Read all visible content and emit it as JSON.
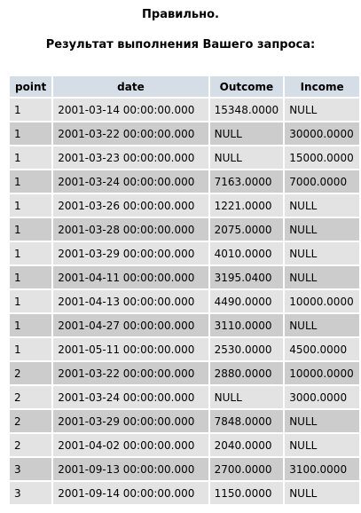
{
  "status_text": "Правильно.",
  "result_title": "Результат выполнения Вашего запроса:",
  "table": {
    "headers": [
      "point",
      "date",
      "Outcome",
      "Income"
    ],
    "rows": [
      [
        "1",
        "2001-03-14 00:00:00.000",
        "15348.0000",
        "NULL"
      ],
      [
        "1",
        "2001-03-22 00:00:00.000",
        "NULL",
        "30000.0000"
      ],
      [
        "1",
        "2001-03-23 00:00:00.000",
        "NULL",
        "15000.0000"
      ],
      [
        "1",
        "2001-03-24 00:00:00.000",
        "7163.0000",
        "7000.0000"
      ],
      [
        "1",
        "2001-03-26 00:00:00.000",
        "1221.0000",
        "NULL"
      ],
      [
        "1",
        "2001-03-28 00:00:00.000",
        "2075.0000",
        "NULL"
      ],
      [
        "1",
        "2001-03-29 00:00:00.000",
        "4010.0000",
        "NULL"
      ],
      [
        "1",
        "2001-04-11 00:00:00.000",
        "3195.0400",
        "NULL"
      ],
      [
        "1",
        "2001-04-13 00:00:00.000",
        "4490.0000",
        "10000.0000"
      ],
      [
        "1",
        "2001-04-27 00:00:00.000",
        "3110.0000",
        "NULL"
      ],
      [
        "1",
        "2001-05-11 00:00:00.000",
        "2530.0000",
        "4500.0000"
      ],
      [
        "2",
        "2001-03-22 00:00:00.000",
        "2880.0000",
        "10000.0000"
      ],
      [
        "2",
        "2001-03-24 00:00:00.000",
        "NULL",
        "3000.0000"
      ],
      [
        "2",
        "2001-03-29 00:00:00.000",
        "7848.0000",
        "NULL"
      ],
      [
        "2",
        "2001-04-02 00:00:00.000",
        "2040.0000",
        "NULL"
      ],
      [
        "3",
        "2001-09-13 00:00:00.000",
        "2700.0000",
        "3100.0000"
      ],
      [
        "3",
        "2001-09-14 00:00:00.000",
        "1150.0000",
        "NULL"
      ]
    ]
  },
  "colors": {
    "header_bg": "#d5dde6",
    "row_odd_bg": "#e3e3e3",
    "row_even_bg": "#cccccc"
  }
}
